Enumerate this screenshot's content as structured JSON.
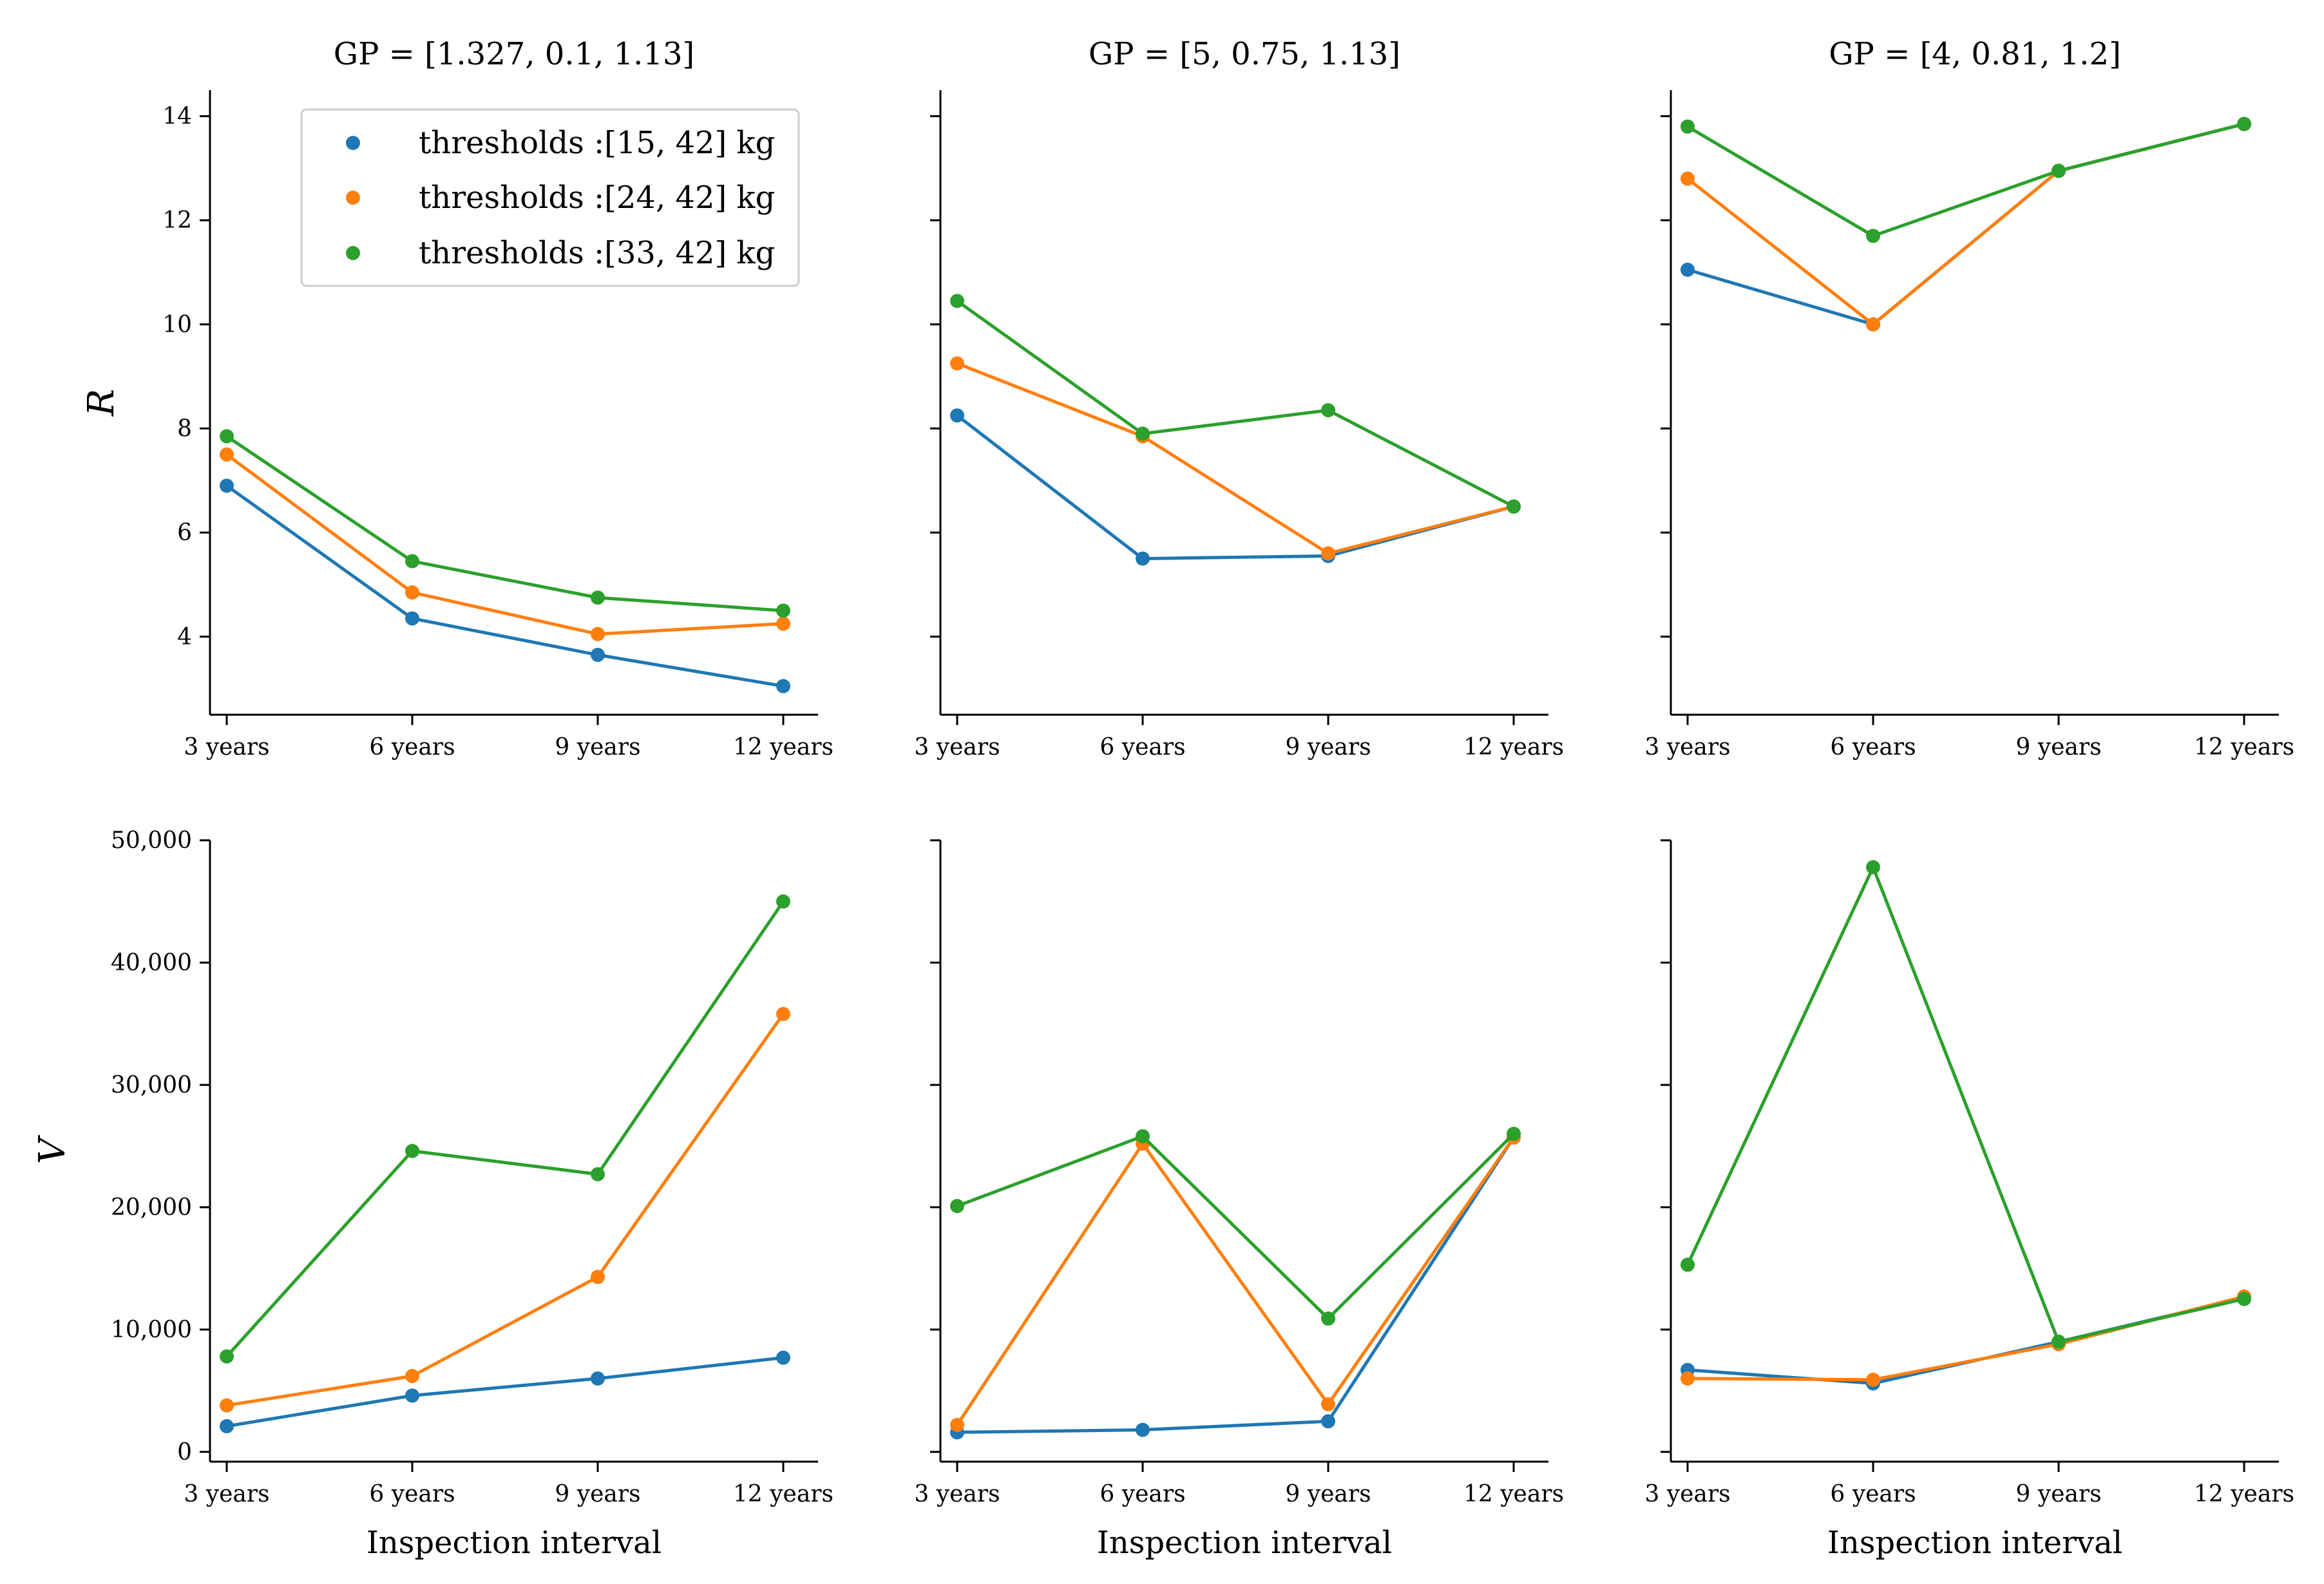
{
  "legend": {
    "entries": [
      "thresholds :[15, 42] kg",
      "thresholds :[24, 42] kg",
      "thresholds :[33, 42] kg"
    ],
    "colors": [
      "#1f77b4",
      "#ff7f0e",
      "#2ca02c"
    ]
  },
  "chart_data": [
    {
      "type": "line",
      "row": 0,
      "col": 0,
      "title": "GP = [1.327, 0.1, 1.13]",
      "xlabel": "",
      "ylabel": "R",
      "categories": [
        "3 years",
        "6 years",
        "9 years",
        "12 years"
      ],
      "ylim": [
        2.5,
        14.5
      ],
      "yticks": [
        4,
        6,
        8,
        10,
        12,
        14
      ],
      "ytick_labels": [
        "4",
        "6",
        "8",
        "10",
        "12",
        "14"
      ],
      "show_ytick_labels": true,
      "series": [
        {
          "name": "thresholds :[15, 42] kg",
          "values": [
            6.9,
            4.35,
            3.65,
            3.05
          ]
        },
        {
          "name": "thresholds :[24, 42] kg",
          "values": [
            7.5,
            4.85,
            4.05,
            4.25
          ]
        },
        {
          "name": "thresholds :[33, 42] kg",
          "values": [
            7.85,
            5.45,
            4.75,
            4.5
          ]
        }
      ]
    },
    {
      "type": "line",
      "row": 0,
      "col": 1,
      "title": "GP = [5, 0.75, 1.13]",
      "xlabel": "",
      "ylabel": "",
      "categories": [
        "3 years",
        "6 years",
        "9 years",
        "12 years"
      ],
      "ylim": [
        2.5,
        14.5
      ],
      "yticks": [
        4,
        6,
        8,
        10,
        12,
        14
      ],
      "ytick_labels": [
        "4",
        "6",
        "8",
        "10",
        "12",
        "14"
      ],
      "show_ytick_labels": false,
      "series": [
        {
          "name": "thresholds :[15, 42] kg",
          "values": [
            8.25,
            5.5,
            5.55,
            6.5
          ]
        },
        {
          "name": "thresholds :[24, 42] kg",
          "values": [
            9.25,
            7.85,
            5.6,
            6.5
          ]
        },
        {
          "name": "thresholds :[33, 42] kg",
          "values": [
            10.45,
            7.9,
            8.35,
            6.5
          ]
        }
      ]
    },
    {
      "type": "line",
      "row": 0,
      "col": 2,
      "title": "GP = [4, 0.81, 1.2]",
      "xlabel": "",
      "ylabel": "",
      "categories": [
        "3 years",
        "6 years",
        "9 years",
        "12 years"
      ],
      "ylim": [
        2.5,
        14.5
      ],
      "yticks": [
        4,
        6,
        8,
        10,
        12,
        14
      ],
      "ytick_labels": [
        "4",
        "6",
        "8",
        "10",
        "12",
        "14"
      ],
      "show_ytick_labels": false,
      "series": [
        {
          "name": "thresholds :[15, 42] kg",
          "values": [
            11.05,
            10.0,
            12.95,
            13.85
          ]
        },
        {
          "name": "thresholds :[24, 42] kg",
          "values": [
            12.8,
            10.0,
            12.95,
            13.85
          ]
        },
        {
          "name": "thresholds :[33, 42] kg",
          "values": [
            13.8,
            11.7,
            12.95,
            13.85
          ]
        }
      ]
    },
    {
      "type": "line",
      "row": 1,
      "col": 0,
      "title": "",
      "xlabel": "Inspection interval",
      "ylabel": "V",
      "categories": [
        "3 years",
        "6 years",
        "9 years",
        "12 years"
      ],
      "ylim": [
        -800,
        50000
      ],
      "yticks": [
        0,
        10000,
        20000,
        30000,
        40000,
        50000
      ],
      "ytick_labels": [
        "0",
        "10,000",
        "20,000",
        "30,000",
        "40,000",
        "50,000"
      ],
      "show_ytick_labels": true,
      "series": [
        {
          "name": "thresholds :[15, 42] kg",
          "values": [
            2100,
            4600,
            6000,
            7700
          ]
        },
        {
          "name": "thresholds :[24, 42] kg",
          "values": [
            3800,
            6200,
            14300,
            35800
          ]
        },
        {
          "name": "thresholds :[33, 42] kg",
          "values": [
            7800,
            24600,
            22700,
            45000
          ]
        }
      ]
    },
    {
      "type": "line",
      "row": 1,
      "col": 1,
      "title": "",
      "xlabel": "Inspection interval",
      "ylabel": "",
      "categories": [
        "3 years",
        "6 years",
        "9 years",
        "12 years"
      ],
      "ylim": [
        -800,
        50000
      ],
      "yticks": [
        0,
        10000,
        20000,
        30000,
        40000,
        50000
      ],
      "ytick_labels": [
        "0",
        "10,000",
        "20,000",
        "30,000",
        "40,000",
        "50,000"
      ],
      "show_ytick_labels": false,
      "series": [
        {
          "name": "thresholds :[15, 42] kg",
          "values": [
            1600,
            1800,
            2500,
            25700
          ]
        },
        {
          "name": "thresholds :[24, 42] kg",
          "values": [
            2200,
            25200,
            3900,
            25700
          ]
        },
        {
          "name": "thresholds :[33, 42] kg",
          "values": [
            20100,
            25800,
            10900,
            26000
          ]
        }
      ]
    },
    {
      "type": "line",
      "row": 1,
      "col": 2,
      "title": "",
      "xlabel": "Inspection interval",
      "ylabel": "",
      "categories": [
        "3 years",
        "6 years",
        "9 years",
        "12 years"
      ],
      "ylim": [
        -800,
        50000
      ],
      "yticks": [
        0,
        10000,
        20000,
        30000,
        40000,
        50000
      ],
      "ytick_labels": [
        "0",
        "10,000",
        "20,000",
        "30,000",
        "40,000",
        "50,000"
      ],
      "show_ytick_labels": false,
      "series": [
        {
          "name": "thresholds :[15, 42] kg",
          "values": [
            6700,
            5600,
            9000,
            12600
          ]
        },
        {
          "name": "thresholds :[24, 42] kg",
          "values": [
            6000,
            5900,
            8800,
            12700
          ]
        },
        {
          "name": "thresholds :[33, 42] kg",
          "values": [
            15300,
            47800,
            9000,
            12500
          ]
        }
      ]
    }
  ]
}
